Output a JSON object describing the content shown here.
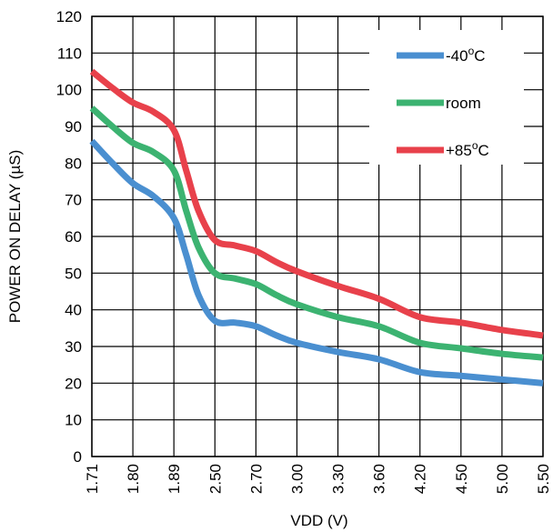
{
  "chart_data": {
    "type": "line",
    "xlabel": "VDD (V)",
    "ylabel": "POWER ON DELAY (µS)",
    "categories": [
      "1.71",
      "1.80",
      "1.89",
      "2.50",
      "2.70",
      "3.00",
      "3.30",
      "3.60",
      "4.20",
      "4.50",
      "5.00",
      "5.50"
    ],
    "y_ticks": [
      "0",
      "10",
      "20",
      "30",
      "40",
      "50",
      "60",
      "70",
      "80",
      "90",
      "100",
      "110",
      "120"
    ],
    "ylim": [
      0,
      120
    ],
    "grid": true,
    "legend_position": "top-right",
    "series": [
      {
        "name": "-40°C",
        "color": "#4a8fd0",
        "points": [
          [
            0,
            86
          ],
          [
            0.5,
            80
          ],
          [
            1,
            74.5
          ],
          [
            1.5,
            71
          ],
          [
            2,
            65
          ],
          [
            2.3,
            55
          ],
          [
            2.6,
            44
          ],
          [
            3,
            37
          ],
          [
            3.5,
            36.5
          ],
          [
            4,
            35.5
          ],
          [
            4.5,
            33
          ],
          [
            5,
            31
          ],
          [
            6,
            28.5
          ],
          [
            7,
            26.5
          ],
          [
            8,
            23
          ],
          [
            9,
            22
          ],
          [
            10,
            21
          ],
          [
            11,
            20
          ]
        ]
      },
      {
        "name": "room",
        "color": "#3cb371",
        "points": [
          [
            0,
            95
          ],
          [
            0.5,
            90
          ],
          [
            1,
            85.5
          ],
          [
            1.5,
            83
          ],
          [
            2,
            78
          ],
          [
            2.3,
            67
          ],
          [
            2.6,
            57
          ],
          [
            3,
            50
          ],
          [
            3.5,
            48.5
          ],
          [
            4,
            47
          ],
          [
            4.5,
            44
          ],
          [
            5,
            41.5
          ],
          [
            6,
            38
          ],
          [
            7,
            35.5
          ],
          [
            8,
            31
          ],
          [
            9,
            29.5
          ],
          [
            10,
            28
          ],
          [
            11,
            27
          ]
        ]
      },
      {
        "name": "+85°C",
        "color": "#e8414b",
        "points": [
          [
            0,
            105
          ],
          [
            0.5,
            100.5
          ],
          [
            1,
            96.5
          ],
          [
            1.5,
            94
          ],
          [
            2,
            89
          ],
          [
            2.3,
            78
          ],
          [
            2.6,
            67
          ],
          [
            3,
            59
          ],
          [
            3.5,
            57.5
          ],
          [
            4,
            56
          ],
          [
            4.5,
            53
          ],
          [
            5,
            50.5
          ],
          [
            6,
            46.5
          ],
          [
            7,
            43
          ],
          [
            8,
            38
          ],
          [
            9,
            36.5
          ],
          [
            10,
            34.5
          ],
          [
            11,
            33
          ]
        ]
      }
    ],
    "legend": [
      {
        "label": "-40",
        "superscript": "o",
        "suffix": "C"
      },
      {
        "label": "room",
        "superscript": "",
        "suffix": ""
      },
      {
        "label": "+85",
        "superscript": "o",
        "suffix": "C"
      }
    ]
  }
}
